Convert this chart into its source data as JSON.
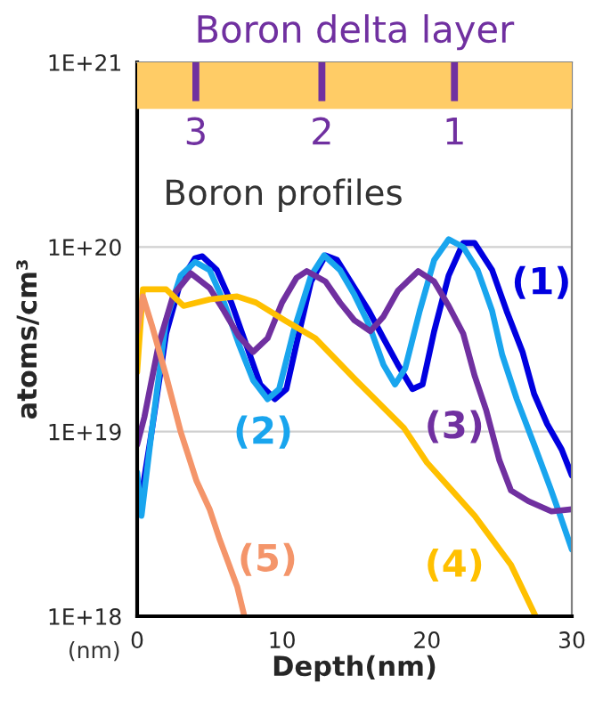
{
  "chart_data": {
    "type": "line",
    "title": "Boron delta layer",
    "xlabel": "Depth(nm)",
    "ylabel": "atoms/cm³",
    "log": "y",
    "xlim": [
      0,
      30
    ],
    "xticks": [
      0,
      10,
      20,
      30
    ],
    "ylim": [
      1e+18,
      1e+21
    ],
    "yticks": [
      {
        "value": 1e+18,
        "label": "1E+18"
      },
      {
        "value": 1e+19,
        "label": "1E+19"
      },
      {
        "value": 1e+20,
        "label": "1E+20"
      },
      {
        "value": 1e+21,
        "label": "1E+21"
      }
    ],
    "grid": "y",
    "legend": false,
    "marker": "none",
    "line_style": "solid",
    "annotations": [
      "Boron profiles",
      "(nm)",
      "3",
      "2",
      "1"
    ],
    "bands": [
      {
        "axis": "y",
        "from": 5.6e+20,
        "to": 1e+21,
        "color": "#ffcc66"
      }
    ],
    "series": [
      {
        "name": "(1)",
        "color": "#0000e0",
        "x": [
          0,
          0.3,
          1,
          2,
          3,
          4,
          4.5,
          5.5,
          6.5,
          7.5,
          8.5,
          9.5,
          10.3,
          11,
          12,
          13,
          13.8,
          15,
          16,
          17,
          18,
          19,
          19.7,
          20.5,
          21.5,
          22.5,
          23.3,
          24.5,
          25.5,
          26.6,
          27.4,
          28.3,
          29.3,
          30
        ],
        "values": [
          5.5e+18,
          4.5e+18,
          1e+19,
          3.4e+19,
          6.5e+19,
          8.7e+19,
          8.9e+19,
          7.5e+19,
          5e+19,
          3e+19,
          1.8e+19,
          1.5e+19,
          1.7e+19,
          3e+19,
          6.5e+19,
          9e+19,
          8.5e+19,
          6e+19,
          4.5e+19,
          3.2e+19,
          2.3e+19,
          1.7e+19,
          1.8e+19,
          3.5e+19,
          7e+19,
          1.05e+20,
          1.05e+20,
          7.5e+19,
          4.5e+19,
          2.7e+19,
          1.6e+19,
          1.1e+19,
          8e+18,
          5.8e+18
        ]
      },
      {
        "name": "(2)",
        "color": "#19a5ee",
        "x": [
          0,
          0.3,
          1,
          2,
          3,
          4,
          5,
          6,
          7,
          8,
          9,
          9.8,
          10.8,
          12,
          12.9,
          14,
          15,
          16,
          17,
          17.8,
          18.5,
          19.5,
          20.5,
          21.5,
          22.5,
          23.5,
          24.5,
          25.2,
          26.2,
          27.4,
          28.5,
          29.2,
          30
        ],
        "values": [
          6e+18,
          3.5e+18,
          1e+19,
          4e+19,
          7e+19,
          8.3e+19,
          7.5e+19,
          5e+19,
          3e+19,
          1.9e+19,
          1.5e+19,
          1.7e+19,
          3.5e+19,
          7e+19,
          9e+19,
          7.5e+19,
          5.5e+19,
          3.8e+19,
          2.3e+19,
          1.8e+19,
          2.2e+19,
          4.5e+19,
          8.5e+19,
          1.1e+20,
          1e+20,
          7.5e+19,
          4.5e+19,
          2.6e+19,
          1.5e+19,
          8.5e+18,
          5e+18,
          3.5e+18,
          2.3e+18
        ]
      },
      {
        "name": "(3)",
        "color": "#7030a0",
        "x": [
          0,
          0.5,
          1.5,
          2.5,
          3.7,
          5,
          6,
          7,
          8,
          9,
          10,
          11,
          11.7,
          13,
          14,
          15,
          16.1,
          17,
          18,
          19.4,
          20.5,
          21.5,
          22.5,
          23.3,
          24.1,
          25,
          25.8,
          27,
          28.6,
          30
        ],
        "values": [
          8.5e+18,
          1.2e+19,
          3e+19,
          5.5e+19,
          7.2e+19,
          6e+19,
          4.5e+19,
          3.3e+19,
          2.7e+19,
          3.2e+19,
          5e+19,
          6.8e+19,
          7.4e+19,
          6.5e+19,
          5e+19,
          4e+19,
          3.5e+19,
          4.2e+19,
          5.8e+19,
          7.4e+19,
          6.5e+19,
          4.8e+19,
          3.4e+19,
          2e+19,
          1.3e+19,
          7e+18,
          4.8e+18,
          4.2e+18,
          3.7e+18,
          3.8e+18
        ]
      },
      {
        "name": "(4)",
        "color": "#ffc000",
        "x": [
          0,
          0.4,
          2,
          3.2,
          5,
          6.9,
          8.2,
          10.2,
          12.3,
          15.1,
          18.4,
          20,
          23.3,
          25.8,
          27.5
        ],
        "values": [
          2.1e+19,
          5.9e+19,
          5.9e+19,
          4.8e+19,
          5.2e+19,
          5.4e+19,
          5e+19,
          4e+19,
          3.2e+19,
          1.9e+19,
          1.05e+19,
          6.8e+18,
          3.5e+18,
          1.9e+18,
          1e+18
        ]
      },
      {
        "name": "(5)",
        "color": "#f4956a",
        "x": [
          0,
          0.4,
          1,
          2,
          3,
          4.1,
          5,
          5.7,
          6.9,
          7.4
        ],
        "values": [
          3.5e+19,
          5.4e+19,
          3.8e+19,
          2e+19,
          1e+19,
          5.4e+18,
          3.8e+18,
          2.6e+18,
          1.45e+18,
          1e+18
        ]
      }
    ]
  }
}
